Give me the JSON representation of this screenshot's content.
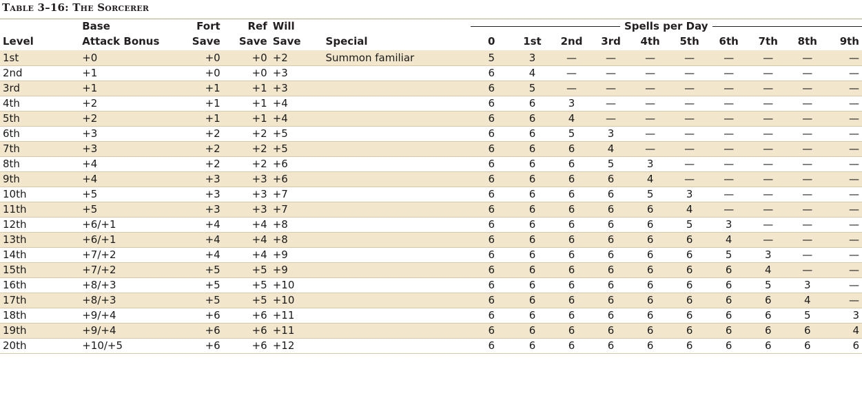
{
  "title": "Table 3–16: The Sorcerer",
  "headers": {
    "level": "Level",
    "bab_top": "Base",
    "bab_bottom": "Attack Bonus",
    "fort_top": "Fort",
    "fort_bottom": "Save",
    "ref_top": "Ref",
    "ref_bottom": "Save",
    "will_top": "Will",
    "will_bottom": "Save",
    "special": "Special",
    "spells_per_day": "Spells per Day",
    "spell_levels": [
      "0",
      "1st",
      "2nd",
      "3rd",
      "4th",
      "5th",
      "6th",
      "7th",
      "8th",
      "9th"
    ]
  },
  "rows": [
    {
      "level": "1st",
      "bab": "+0",
      "fort": "+0",
      "ref": "+0",
      "will": "+2",
      "special": "Summon familiar",
      "spells": [
        "5",
        "3",
        "—",
        "—",
        "—",
        "—",
        "—",
        "—",
        "—",
        "—"
      ]
    },
    {
      "level": "2nd",
      "bab": "+1",
      "fort": "+0",
      "ref": "+0",
      "will": "+3",
      "special": "",
      "spells": [
        "6",
        "4",
        "—",
        "—",
        "—",
        "—",
        "—",
        "—",
        "—",
        "—"
      ]
    },
    {
      "level": "3rd",
      "bab": "+1",
      "fort": "+1",
      "ref": "+1",
      "will": "+3",
      "special": "",
      "spells": [
        "6",
        "5",
        "—",
        "—",
        "—",
        "—",
        "—",
        "—",
        "—",
        "—"
      ]
    },
    {
      "level": "4th",
      "bab": "+2",
      "fort": "+1",
      "ref": "+1",
      "will": "+4",
      "special": "",
      "spells": [
        "6",
        "6",
        "3",
        "—",
        "—",
        "—",
        "—",
        "—",
        "—",
        "—"
      ]
    },
    {
      "level": "5th",
      "bab": "+2",
      "fort": "+1",
      "ref": "+1",
      "will": "+4",
      "special": "",
      "spells": [
        "6",
        "6",
        "4",
        "—",
        "—",
        "—",
        "—",
        "—",
        "—",
        "—"
      ]
    },
    {
      "level": "6th",
      "bab": "+3",
      "fort": "+2",
      "ref": "+2",
      "will": "+5",
      "special": "",
      "spells": [
        "6",
        "6",
        "5",
        "3",
        "—",
        "—",
        "—",
        "—",
        "—",
        "—"
      ]
    },
    {
      "level": "7th",
      "bab": "+3",
      "fort": "+2",
      "ref": "+2",
      "will": "+5",
      "special": "",
      "spells": [
        "6",
        "6",
        "6",
        "4",
        "—",
        "—",
        "—",
        "—",
        "—",
        "—"
      ]
    },
    {
      "level": "8th",
      "bab": "+4",
      "fort": "+2",
      "ref": "+2",
      "will": "+6",
      "special": "",
      "spells": [
        "6",
        "6",
        "6",
        "5",
        "3",
        "—",
        "—",
        "—",
        "—",
        "—"
      ]
    },
    {
      "level": "9th",
      "bab": "+4",
      "fort": "+3",
      "ref": "+3",
      "will": "+6",
      "special": "",
      "spells": [
        "6",
        "6",
        "6",
        "6",
        "4",
        "—",
        "—",
        "—",
        "—",
        "—"
      ]
    },
    {
      "level": "10th",
      "bab": "+5",
      "fort": "+3",
      "ref": "+3",
      "will": "+7",
      "special": "",
      "spells": [
        "6",
        "6",
        "6",
        "6",
        "5",
        "3",
        "—",
        "—",
        "—",
        "—"
      ]
    },
    {
      "level": "11th",
      "bab": "+5",
      "fort": "+3",
      "ref": "+3",
      "will": "+7",
      "special": "",
      "spells": [
        "6",
        "6",
        "6",
        "6",
        "6",
        "4",
        "—",
        "—",
        "—",
        "—"
      ]
    },
    {
      "level": "12th",
      "bab": "+6/+1",
      "fort": "+4",
      "ref": "+4",
      "will": "+8",
      "special": "",
      "spells": [
        "6",
        "6",
        "6",
        "6",
        "6",
        "5",
        "3",
        "—",
        "—",
        "—"
      ]
    },
    {
      "level": "13th",
      "bab": "+6/+1",
      "fort": "+4",
      "ref": "+4",
      "will": "+8",
      "special": "",
      "spells": [
        "6",
        "6",
        "6",
        "6",
        "6",
        "6",
        "4",
        "—",
        "—",
        "—"
      ]
    },
    {
      "level": "14th",
      "bab": "+7/+2",
      "fort": "+4",
      "ref": "+4",
      "will": "+9",
      "special": "",
      "spells": [
        "6",
        "6",
        "6",
        "6",
        "6",
        "6",
        "5",
        "3",
        "—",
        "—"
      ]
    },
    {
      "level": "15th",
      "bab": "+7/+2",
      "fort": "+5",
      "ref": "+5",
      "will": "+9",
      "special": "",
      "spells": [
        "6",
        "6",
        "6",
        "6",
        "6",
        "6",
        "6",
        "4",
        "—",
        "—"
      ]
    },
    {
      "level": "16th",
      "bab": "+8/+3",
      "fort": "+5",
      "ref": "+5",
      "will": "+10",
      "special": "",
      "spells": [
        "6",
        "6",
        "6",
        "6",
        "6",
        "6",
        "6",
        "5",
        "3",
        "—"
      ]
    },
    {
      "level": "17th",
      "bab": "+8/+3",
      "fort": "+5",
      "ref": "+5",
      "will": "+10",
      "special": "",
      "spells": [
        "6",
        "6",
        "6",
        "6",
        "6",
        "6",
        "6",
        "6",
        "4",
        "—"
      ]
    },
    {
      "level": "18th",
      "bab": "+9/+4",
      "fort": "+6",
      "ref": "+6",
      "will": "+11",
      "special": "",
      "spells": [
        "6",
        "6",
        "6",
        "6",
        "6",
        "6",
        "6",
        "6",
        "5",
        "3"
      ]
    },
    {
      "level": "19th",
      "bab": "+9/+4",
      "fort": "+6",
      "ref": "+6",
      "will": "+11",
      "special": "",
      "spells": [
        "6",
        "6",
        "6",
        "6",
        "6",
        "6",
        "6",
        "6",
        "6",
        "4"
      ]
    },
    {
      "level": "20th",
      "bab": "+10/+5",
      "fort": "+6",
      "ref": "+6",
      "will": "+12",
      "special": "",
      "spells": [
        "6",
        "6",
        "6",
        "6",
        "6",
        "6",
        "6",
        "6",
        "6",
        "6"
      ]
    }
  ]
}
